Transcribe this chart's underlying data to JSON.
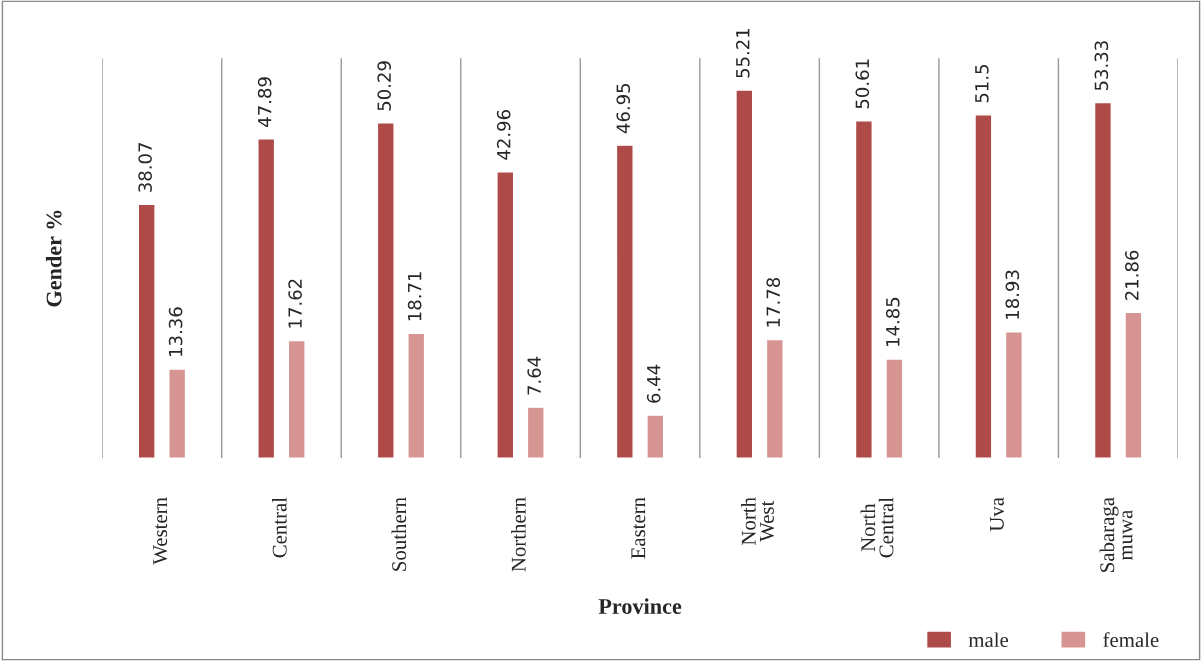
{
  "chart_data": {
    "type": "bar",
    "xlabel": "Province",
    "ylabel": "Gender %",
    "categories": [
      "Western",
      "Central",
      "Southern",
      "Northern",
      "Eastern",
      "North\nWest",
      "North\nCentral",
      "Uva",
      "Sabaraga\nmuwa"
    ],
    "series": [
      {
        "name": "male",
        "color": "#ae4a47",
        "values": [
          38.07,
          47.89,
          50.29,
          42.96,
          46.95,
          55.21,
          50.61,
          51.5,
          53.33
        ]
      },
      {
        "name": "female",
        "color": "#d69593",
        "values": [
          13.36,
          17.62,
          18.71,
          7.64,
          6.44,
          17.78,
          14.85,
          18.93,
          21.86
        ]
      }
    ],
    "ylim": [
      0,
      60
    ],
    "data_labels": true,
    "grid": "x",
    "legend": "bottom right",
    "tick_labels": "x"
  }
}
